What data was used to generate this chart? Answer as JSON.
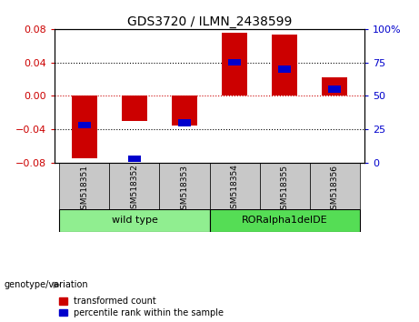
{
  "title": "GDS3720 / ILMN_2438599",
  "samples": [
    "GSM518351",
    "GSM518352",
    "GSM518353",
    "GSM518354",
    "GSM518355",
    "GSM518356"
  ],
  "transformed_counts": [
    -0.075,
    -0.03,
    -0.035,
    0.075,
    0.073,
    0.022
  ],
  "percentile_ranks": [
    28,
    3,
    30,
    75,
    70,
    55
  ],
  "ylim_left": [
    -0.08,
    0.08
  ],
  "ylim_right": [
    0,
    100
  ],
  "yticks_left": [
    -0.08,
    -0.04,
    0,
    0.04,
    0.08
  ],
  "yticks_right": [
    0,
    25,
    50,
    75,
    100
  ],
  "ytick_labels_right": [
    "0",
    "25",
    "50",
    "75",
    "100%"
  ],
  "groups": [
    {
      "label": "wild type",
      "start": 0,
      "end": 3,
      "color": "#90EE90"
    },
    {
      "label": "RORalpha1delDE",
      "start": 3,
      "end": 6,
      "color": "#55DD55"
    }
  ],
  "group_label_prefix": "genotype/variation",
  "bar_color": "#CC0000",
  "percentile_color": "#0000CC",
  "bar_width": 0.5,
  "percentile_bar_width": 0.25,
  "bg_color": "#FFFFFF",
  "zero_line_color": "#CC0000",
  "dotted_line_color": "#000000",
  "legend_red_label": "transformed count",
  "legend_blue_label": "percentile rank within the sample",
  "left_axis_color": "#CC0000",
  "right_axis_color": "#0000CC",
  "sample_box_color": "#C8C8C8"
}
